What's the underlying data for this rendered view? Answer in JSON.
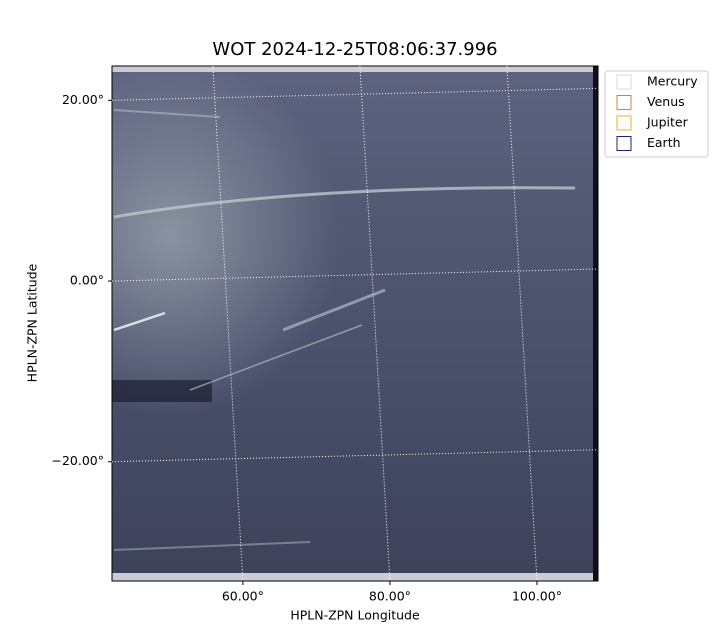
{
  "chart_data": {
    "type": "image",
    "title": "WOT 2024-12-25T08:06:37.996",
    "x_label": "HPLN-ZPN Longitude",
    "y_label": "HPLN-ZPN Latitude",
    "xlim": [
      42.2,
      108.3
    ],
    "ylim": [
      -33.2,
      23.8
    ],
    "xticks": [
      {
        "value": 60,
        "label": "60.00°"
      },
      {
        "value": 80,
        "label": "80.00°"
      },
      {
        "value": 100,
        "label": "100.00°"
      }
    ],
    "yticks": [
      {
        "value": -20,
        "label": "−20.00°"
      },
      {
        "value": 0,
        "label": "0.00°"
      },
      {
        "value": 20,
        "label": "20.00°"
      }
    ],
    "grid": true,
    "legend_position": "outside-upper-right",
    "legend": [
      {
        "name": "Mercury",
        "color": "#d9d9d9"
      },
      {
        "name": "Venus",
        "color": "#e07b39"
      },
      {
        "name": "Jupiter",
        "color": "#e8b32a"
      },
      {
        "name": "Earth",
        "color": "#1f1f7a"
      }
    ]
  }
}
